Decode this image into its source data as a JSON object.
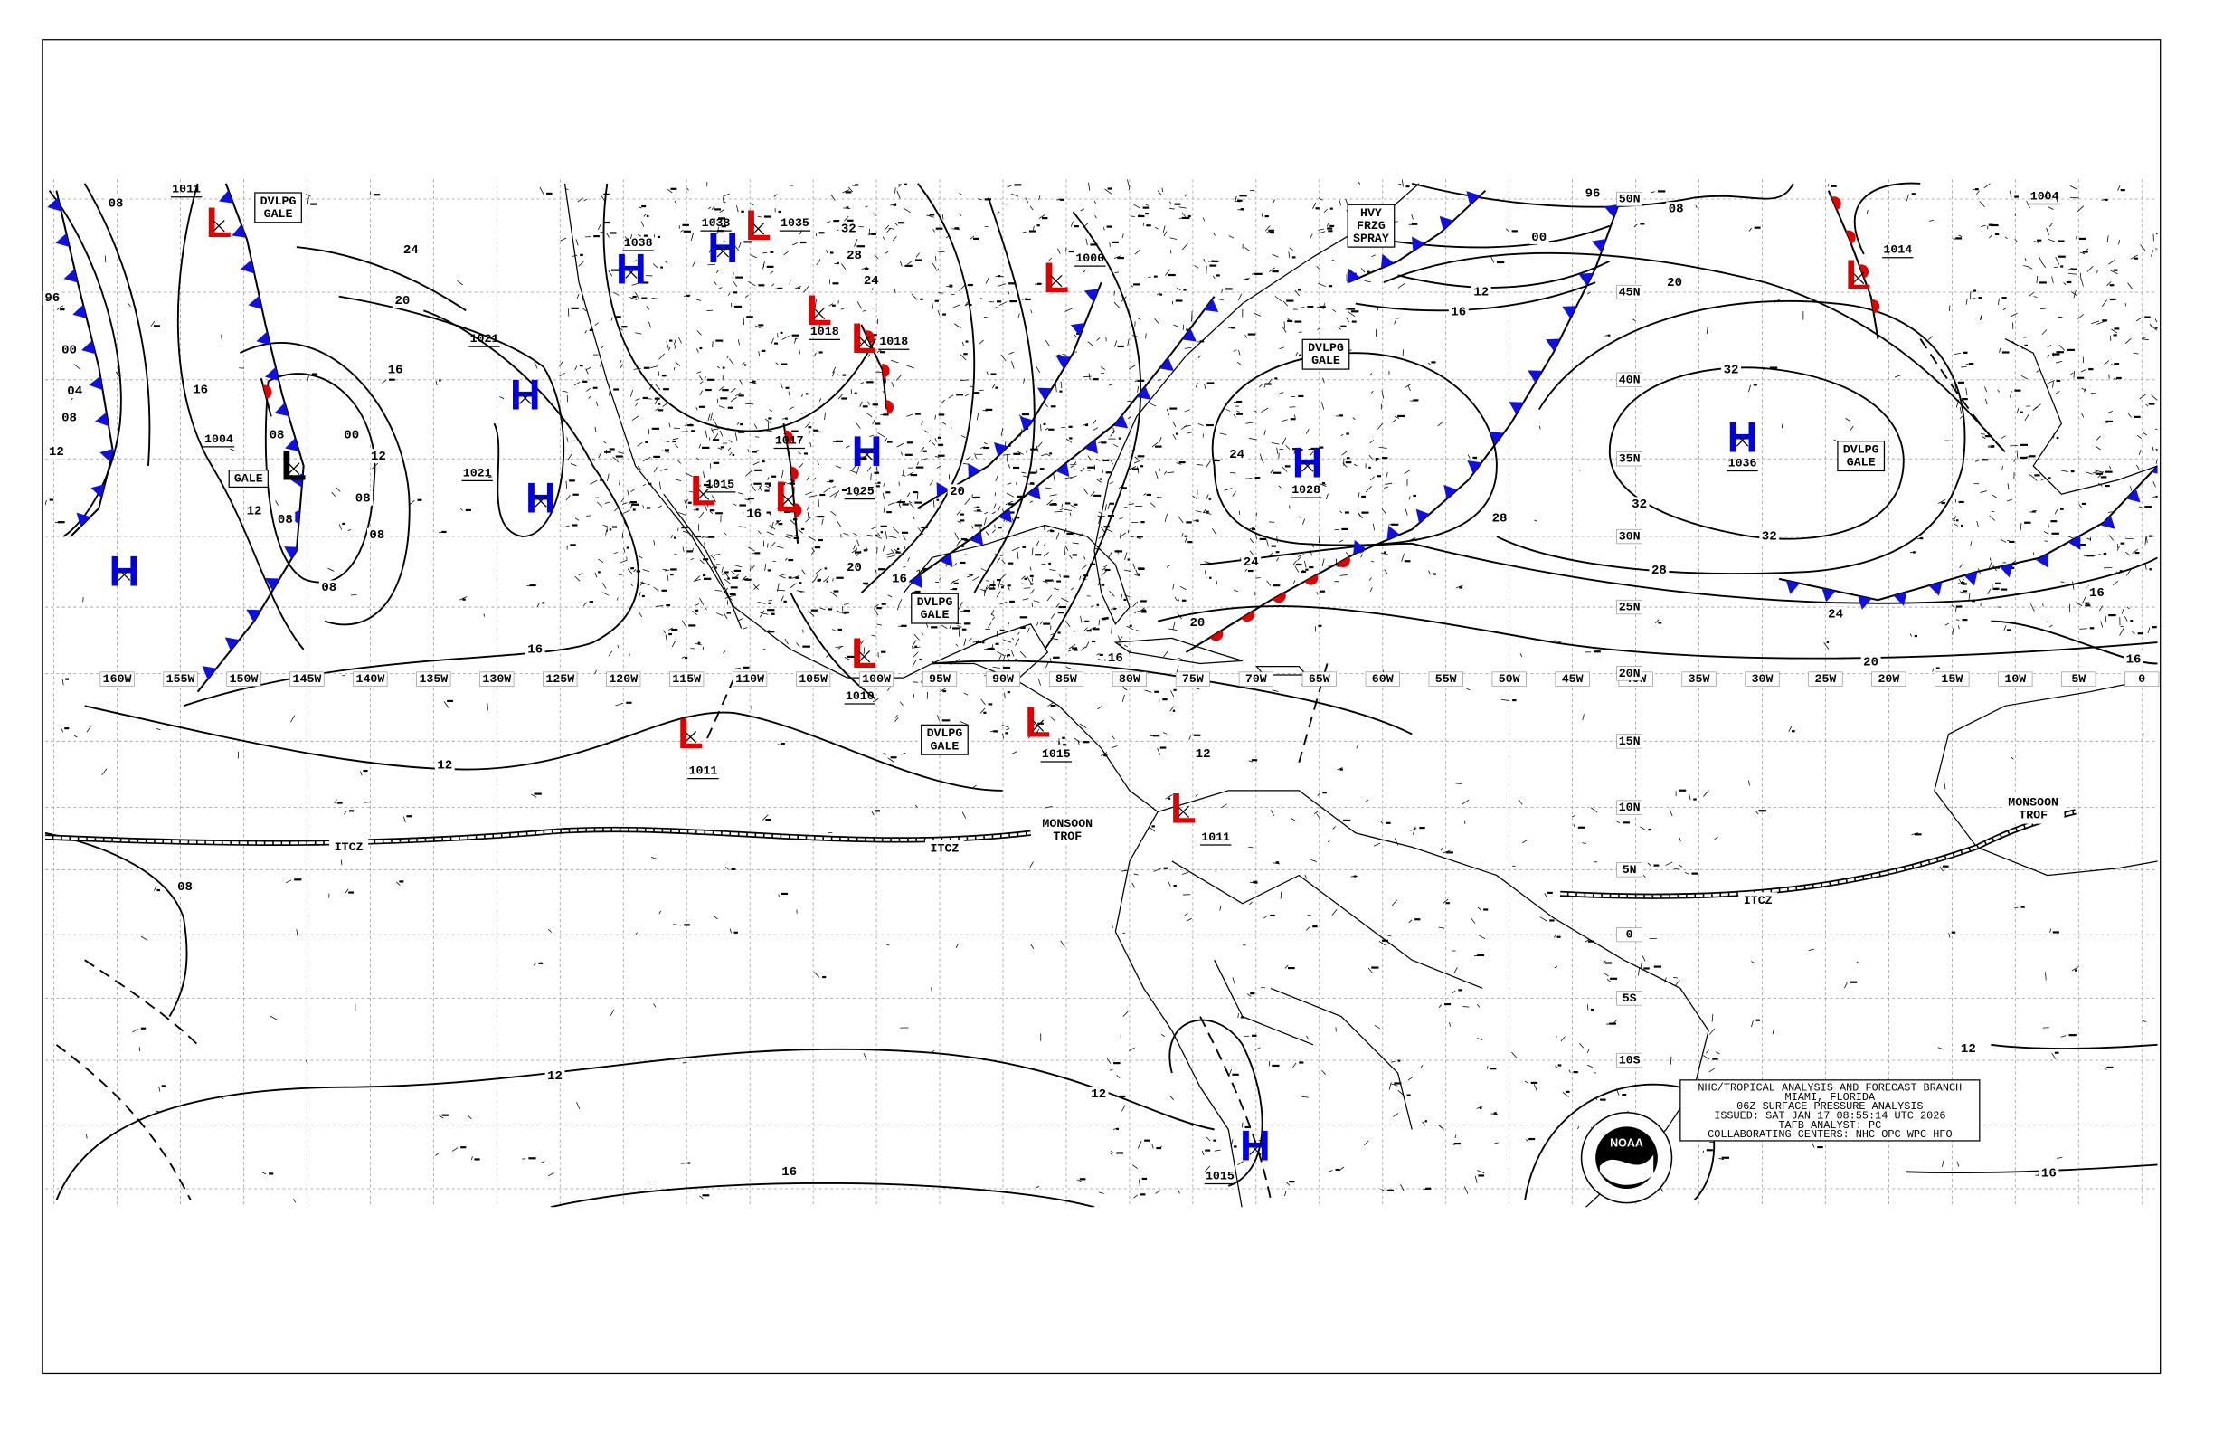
{
  "pressure_centers": [
    {
      "symbol": "L",
      "color": "#e00000",
      "pressure": "1011"
    },
    {
      "symbol": "H",
      "color": "#0000e0",
      "pressure": "1038"
    },
    {
      "symbol": "H",
      "color": "#0000e0",
      "pressure": "1038"
    },
    {
      "symbol": "L",
      "color": "#e00000",
      "pressure": "1035"
    },
    {
      "symbol": "H",
      "color": "#0000e0",
      "pressure": "1021"
    },
    {
      "symbol": "H",
      "color": "#0000e0",
      "pressure": "1021"
    },
    {
      "symbol": "H",
      "color": "#0000e0"
    },
    {
      "symbol": "L",
      "color": "#000000",
      "pressure": "1004"
    },
    {
      "symbol": "L",
      "color": "#e00000",
      "pressure": "1018"
    },
    {
      "symbol": "L",
      "color": "#e00000",
      "pressure": "1018"
    },
    {
      "symbol": "L",
      "color": "#e00000",
      "pressure": "1017"
    },
    {
      "symbol": "L",
      "color": "#e00000",
      "pressure": "1015"
    },
    {
      "symbol": "H",
      "color": "#0000e0",
      "pressure": "1025"
    },
    {
      "symbol": "L",
      "color": "#e00000",
      "pressure": "1000"
    },
    {
      "symbol": "H",
      "color": "#0000e0",
      "pressure": "1028"
    },
    {
      "symbol": "H",
      "color": "#0000e0",
      "pressure": "1036"
    },
    {
      "symbol": "L",
      "color": "#e00000",
      "pressure": "1014"
    },
    {
      "symbol": "L",
      "color": "#e00000",
      "pressure": "1010"
    },
    {
      "symbol": "L",
      "color": "#e00000",
      "pressure": "1011"
    },
    {
      "symbol": "L",
      "color": "#e00000",
      "pressure": "1015"
    },
    {
      "symbol": "L",
      "color": "#e00000",
      "pressure": "1011"
    },
    {
      "symbol": "H",
      "color": "#0000e0",
      "pressure": "1015"
    },
    {
      "pressure": "1004"
    }
  ],
  "isobar_labels": [
    "08",
    "96",
    "00",
    "04",
    "08",
    "12",
    "16",
    "24",
    "20",
    "16",
    "12",
    "08",
    "00",
    "08",
    "08",
    "08",
    "08",
    "12",
    "16",
    "12",
    "08",
    "12",
    "12",
    "16",
    "32",
    "28",
    "24",
    "20",
    "20",
    "16",
    "16",
    "96",
    "08",
    "00",
    "12",
    "16",
    "20",
    "24",
    "32",
    "32",
    "32",
    "28",
    "28",
    "24",
    "24",
    "20",
    "20",
    "16",
    "16",
    "16",
    "12",
    "16",
    "12"
  ],
  "longitude_labels": [
    "160W",
    "155W",
    "150W",
    "145W",
    "140W",
    "135W",
    "130W",
    "125W",
    "120W",
    "115W",
    "110W",
    "105W",
    "100W",
    "95W",
    "90W",
    "85W",
    "80W",
    "75W",
    "70W",
    "65W",
    "60W",
    "55W",
    "50W",
    "45W",
    "40W",
    "35W",
    "30W",
    "25W",
    "20W",
    "15W",
    "10W",
    "5W",
    "0"
  ],
  "latitude_labels": [
    "50N",
    "45N",
    "40N",
    "35N",
    "30N",
    "25N",
    "20N",
    "15N",
    "10N",
    "5N",
    "0",
    "5S",
    "10S"
  ],
  "area_labels": [
    {
      "lines": [
        "DVLPG",
        "GALE"
      ],
      "boxed": true
    },
    {
      "lines": [
        "GALE"
      ],
      "boxed": true
    },
    {
      "lines": [
        "DVLPG",
        "GALE"
      ],
      "boxed": true
    },
    {
      "lines": [
        "DVLPG",
        "GALE"
      ],
      "boxed": true
    },
    {
      "lines": [
        "DVLPG",
        "GALE"
      ],
      "boxed": true
    },
    {
      "lines": [
        "DVLPG",
        "GALE"
      ],
      "boxed": true
    },
    {
      "lines": [
        "HVY",
        "FRZG",
        "SPRAY"
      ],
      "boxed": true
    },
    {
      "lines": [
        "ITCZ"
      ],
      "boxed": false
    },
    {
      "lines": [
        "ITCZ"
      ],
      "boxed": false
    },
    {
      "lines": [
        "ITCZ"
      ],
      "boxed": false
    },
    {
      "lines": [
        "MONSOON",
        "TROF"
      ],
      "boxed": false
    },
    {
      "lines": [
        "MONSOON",
        "TROF"
      ],
      "boxed": false
    }
  ],
  "info_box": {
    "lines": [
      "NHC/TROPICAL ANALYSIS AND FORECAST BRANCH",
      "MIAMI, FLORIDA",
      "06Z SURFACE PRESSURE ANALYSIS",
      "ISSUED: SAT JAN 17 08:55:14 UTC 2026",
      "TAFB ANALYST: PC",
      "COLLABORATING CENTERS: NHC OPC WPC HFO"
    ]
  },
  "logo_text": "NOAA"
}
